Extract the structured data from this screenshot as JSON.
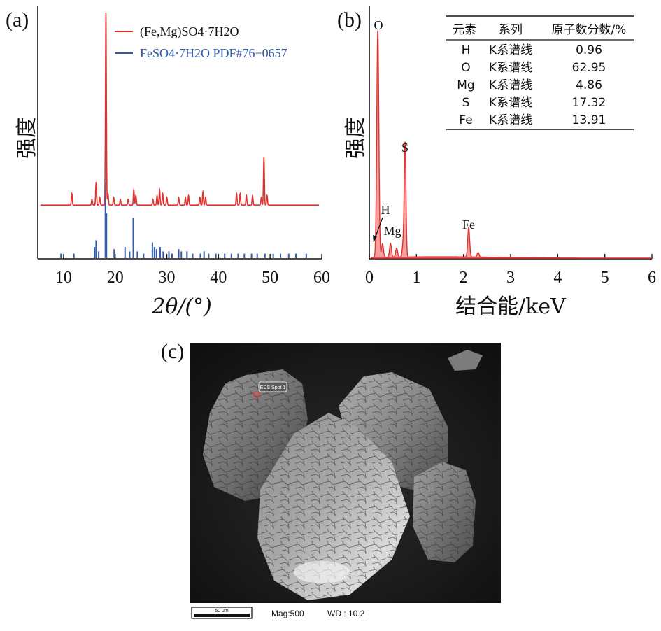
{
  "panels": {
    "a": {
      "label": "(a)",
      "ylabel": "强度",
      "xlabel": "2θ/(°)",
      "legend": [
        {
          "name": "(Fe,Mg)SO4·7H2O",
          "color": "#e0332f"
        },
        {
          "name": "FeSO4·7H2O PDF#76−0657",
          "color": "#2e5aa8"
        }
      ]
    },
    "b": {
      "label": "(b)",
      "ylabel": "强度",
      "xlabel": "结合能/keV",
      "peak_labels": [
        "O",
        "S",
        "H",
        "Mg",
        "Fe"
      ],
      "table": {
        "headers": [
          "元素",
          "系列",
          "原子数分数/%"
        ],
        "rows": [
          {
            "element": "H",
            "series": "K系谱线",
            "value": "0.96"
          },
          {
            "element": "O",
            "series": "K系谱线",
            "value": "62.95"
          },
          {
            "element": "Mg",
            "series": "K系谱线",
            "value": "4.86"
          },
          {
            "element": "S",
            "series": "K系谱线",
            "value": "17.32"
          },
          {
            "element": "Fe",
            "series": "K系谱线",
            "value": "13.91"
          }
        ]
      }
    },
    "c": {
      "label": "(c)",
      "eds_label": "EDS Spot 1",
      "scale_bar": "50 um",
      "mag": "Mag:500",
      "wd": "WD : 10.2"
    }
  },
  "chart_data": [
    {
      "type": "line",
      "panel": "a",
      "xlabel": "2θ/(°)",
      "ylabel": "强度",
      "xlim": [
        5,
        60
      ],
      "xticks": [
        10,
        20,
        30,
        40,
        50,
        60
      ],
      "yticks": [],
      "series": [
        {
          "name": "(Fe,Mg)SO4·7H2O",
          "color": "#e0332f",
          "baseline": 0.24,
          "peaks": [
            [
              11.6,
              0.06
            ],
            [
              15.5,
              0.03
            ],
            [
              16.3,
              0.12
            ],
            [
              17.0,
              0.04
            ],
            [
              18.2,
              1.0
            ],
            [
              18.6,
              0.06
            ],
            [
              19.7,
              0.04
            ],
            [
              21.0,
              0.03
            ],
            [
              22.5,
              0.03
            ],
            [
              23.6,
              0.08
            ],
            [
              24.0,
              0.05
            ],
            [
              27.3,
              0.03
            ],
            [
              28.1,
              0.05
            ],
            [
              28.6,
              0.08
            ],
            [
              29.2,
              0.06
            ],
            [
              30.0,
              0.04
            ],
            [
              32.3,
              0.04
            ],
            [
              33.6,
              0.04
            ],
            [
              34.2,
              0.05
            ],
            [
              36.4,
              0.04
            ],
            [
              37.0,
              0.07
            ],
            [
              37.5,
              0.04
            ],
            [
              43.5,
              0.06
            ],
            [
              44.2,
              0.06
            ],
            [
              45.4,
              0.05
            ],
            [
              46.6,
              0.05
            ],
            [
              48.3,
              0.04
            ],
            [
              48.8,
              0.25
            ],
            [
              49.4,
              0.05
            ]
          ]
        },
        {
          "name": "FeSO4·7H2O PDF#76−0657",
          "color": "#2e5aa8",
          "sticks": [
            [
              9.5,
              0.02
            ],
            [
              12.0,
              0.02
            ],
            [
              16.0,
              0.05
            ],
            [
              16.3,
              0.08
            ],
            [
              16.8,
              0.03
            ],
            [
              18.1,
              0.34
            ],
            [
              18.3,
              0.2
            ],
            [
              19.8,
              0.04
            ],
            [
              21.9,
              0.05
            ],
            [
              22.8,
              0.03
            ],
            [
              23.5,
              0.18
            ],
            [
              24.3,
              0.03
            ],
            [
              25.5,
              0.02
            ],
            [
              27.2,
              0.07
            ],
            [
              27.6,
              0.05
            ],
            [
              28.0,
              0.04
            ],
            [
              28.7,
              0.05
            ],
            [
              29.3,
              0.03
            ],
            [
              30.4,
              0.03
            ],
            [
              31.0,
              0.02
            ],
            [
              32.3,
              0.04
            ],
            [
              32.8,
              0.03
            ],
            [
              33.9,
              0.03
            ],
            [
              35.0,
              0.02
            ],
            [
              36.5,
              0.02
            ],
            [
              37.2,
              0.03
            ],
            [
              38.1,
              0.02
            ],
            [
              39.5,
              0.02
            ],
            [
              41.2,
              0.02
            ],
            [
              42.5,
              0.02
            ],
            [
              43.8,
              0.02
            ],
            [
              45.0,
              0.02
            ],
            [
              46.4,
              0.02
            ],
            [
              47.5,
              0.02
            ],
            [
              49.0,
              0.02
            ],
            [
              50.6,
              0.02
            ],
            [
              52.0,
              0.02
            ],
            [
              53.6,
              0.02
            ],
            [
              55.0,
              0.02
            ],
            [
              57.0,
              0.02
            ]
          ]
        }
      ]
    },
    {
      "type": "area",
      "panel": "b",
      "xlabel": "结合能/keV",
      "ylabel": "强度",
      "xlim": [
        0,
        6
      ],
      "xticks": [
        0,
        1,
        2,
        3,
        4,
        5,
        6
      ],
      "yticks": [],
      "series": [
        {
          "name": "",
          "color": "#e0332f",
          "peaks": [
            [
              0.18,
              1.0,
              0.022
            ],
            [
              0.28,
              0.06,
              0.02
            ],
            [
              0.45,
              0.06,
              0.02
            ],
            [
              0.58,
              0.04,
              0.02
            ],
            [
              0.72,
              0.06,
              0.02
            ],
            [
              0.76,
              0.5,
              0.018
            ],
            [
              2.11,
              0.13,
              0.02
            ],
            [
              2.31,
              0.02,
              0.02
            ]
          ]
        }
      ]
    }
  ]
}
